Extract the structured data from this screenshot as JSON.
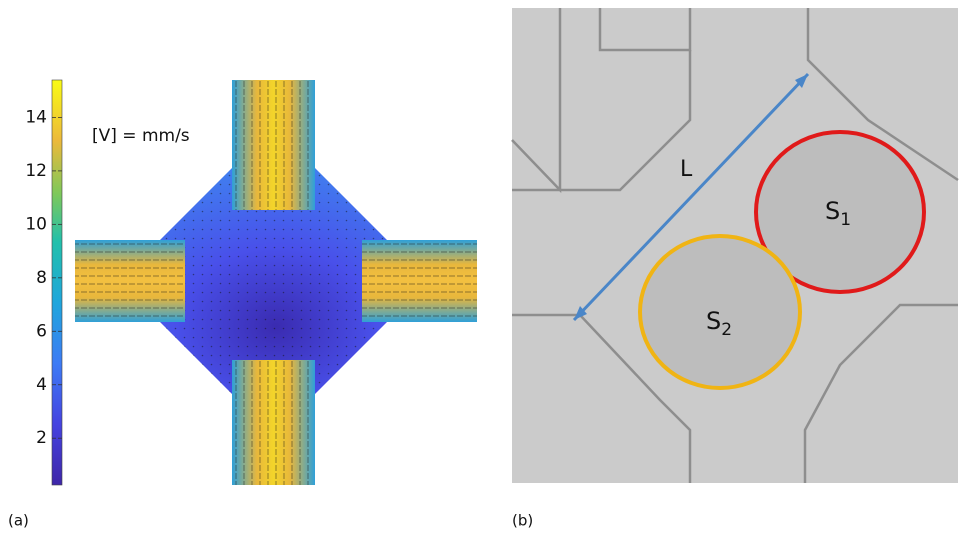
{
  "panel_a": {
    "label": "(a)",
    "unit_label": "[V] = mm/s",
    "colorbar": {
      "clim": [
        0.25,
        15.4
      ],
      "ticks": [
        2,
        4,
        6,
        8,
        10,
        12,
        14
      ]
    }
  },
  "panel_b": {
    "label": "(b)",
    "length_label": "L",
    "droplets": [
      {
        "label": "S",
        "subscript": "1"
      },
      {
        "label": "S",
        "subscript": "2"
      }
    ]
  }
}
